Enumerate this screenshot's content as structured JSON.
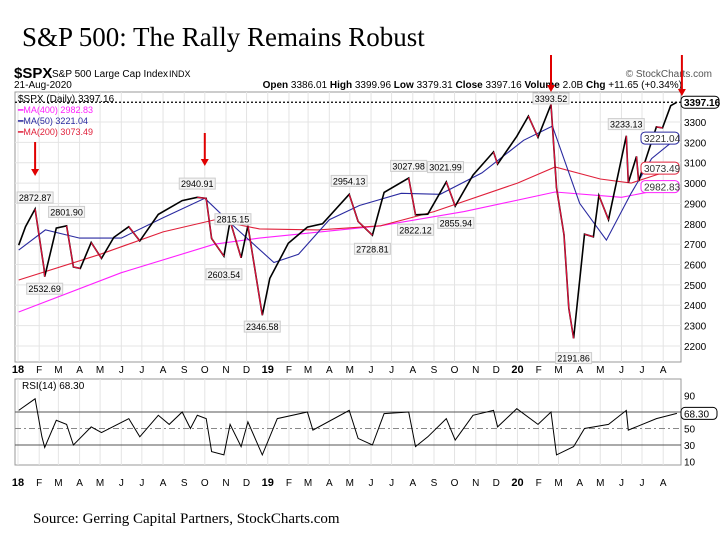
{
  "title": "S&P 500: The Rally Remains Robust",
  "source": "Source: Gerring Capital Partners, StockCharts.com",
  "header": {
    "symbol": "$SPX",
    "name": "S&P 500 Large Cap Index",
    "exchange": "INDX",
    "date": "21-Aug-2020",
    "watermark": "© StockCharts.com",
    "open_label": "Open",
    "open": "3386.01",
    "high_label": "High",
    "high": "3399.96",
    "low_label": "Low",
    "low": "3379.31",
    "close_label": "Close",
    "close": "3397.16",
    "volume_label": "Volume",
    "volume": "2.0B",
    "chg_label": "Chg",
    "chg": "+11.65 (+0.34%)"
  },
  "colors": {
    "price": "#000000",
    "down": "#e0103a",
    "ma50": "#2a2aa0",
    "ma200": "#e0203a",
    "ma400": "#ff20ff",
    "arrow": "#e00000",
    "grid": "#e4e4e4"
  },
  "chart_data": [
    {
      "type": "line",
      "title": "$SPX (Daily) 3397.16",
      "ylim": [
        2130,
        3440
      ],
      "yticks": [
        2200,
        2300,
        2400,
        2500,
        2600,
        2700,
        2800,
        2900,
        3000,
        3100,
        3200,
        3300
      ],
      "xlim": [
        "2018-01-01",
        "2020-08-27"
      ],
      "xtick_labels": [
        "18",
        "F",
        "M",
        "A",
        "M",
        "J",
        "J",
        "A",
        "S",
        "O",
        "N",
        "D",
        "19",
        "F",
        "M",
        "A",
        "M",
        "J",
        "J",
        "A",
        "S",
        "O",
        "N",
        "D",
        "20",
        "F",
        "M",
        "A",
        "M",
        "J",
        "J",
        "A"
      ],
      "last_value_label": "3397.16",
      "grid": true,
      "series": [
        {
          "name": "$SPX (Daily) 3397.16",
          "points": [
            [
              "2018-01-02",
              2695
            ],
            [
              "2018-01-12",
              2786
            ],
            [
              "2018-01-26",
              2872.87
            ],
            [
              "2018-02-08",
              2581
            ],
            [
              "2018-02-09",
              2540
            ],
            [
              "2018-02-26",
              2779
            ],
            [
              "2018-03-13",
              2790
            ],
            [
              "2018-03-23",
              2588
            ],
            [
              "2018-04-02",
              2581
            ],
            [
              "2018-04-18",
              2708
            ],
            [
              "2018-05-03",
              2630
            ],
            [
              "2018-05-21",
              2733
            ],
            [
              "2018-06-12",
              2786
            ],
            [
              "2018-06-28",
              2716
            ],
            [
              "2018-07-25",
              2846
            ],
            [
              "2018-08-29",
              2914
            ],
            [
              "2018-09-20",
              2930
            ],
            [
              "2018-10-03",
              2925
            ],
            [
              "2018-10-11",
              2728
            ],
            [
              "2018-10-29",
              2641
            ],
            [
              "2018-11-07",
              2814
            ],
            [
              "2018-11-23",
              2633
            ],
            [
              "2018-12-03",
              2790
            ],
            [
              "2018-12-24",
              2351
            ],
            [
              "2019-01-04",
              2532
            ],
            [
              "2019-01-31",
              2704
            ],
            [
              "2019-02-28",
              2784
            ],
            [
              "2019-03-22",
              2800
            ],
            [
              "2019-04-30",
              2945
            ],
            [
              "2019-05-13",
              2812
            ],
            [
              "2019-06-03",
              2744
            ],
            [
              "2019-06-20",
              2954
            ],
            [
              "2019-07-26",
              3025
            ],
            [
              "2019-08-05",
              2844
            ],
            [
              "2019-08-23",
              2847
            ],
            [
              "2019-09-19",
              3006
            ],
            [
              "2019-10-02",
              2887
            ],
            [
              "2019-10-28",
              3039
            ],
            [
              "2019-11-27",
              3153
            ],
            [
              "2019-12-03",
              3093
            ],
            [
              "2019-12-31",
              3230
            ],
            [
              "2020-01-17",
              3329
            ],
            [
              "2020-01-31",
              3225
            ],
            [
              "2020-02-19",
              3386
            ],
            [
              "2020-02-27",
              2978
            ],
            [
              "2020-03-09",
              2746
            ],
            [
              "2020-03-16",
              2386
            ],
            [
              "2020-03-23",
              2237
            ],
            [
              "2020-04-08",
              2749
            ],
            [
              "2020-04-21",
              2736
            ],
            [
              "2020-04-29",
              2939
            ],
            [
              "2020-05-13",
              2820
            ],
            [
              "2020-06-08",
              3232
            ],
            [
              "2020-06-11",
              3002
            ],
            [
              "2020-06-23",
              3131
            ],
            [
              "2020-06-26",
              3009
            ],
            [
              "2020-07-22",
              3276
            ],
            [
              "2020-07-31",
              3271
            ],
            [
              "2020-08-12",
              3380
            ],
            [
              "2020-08-21",
              3397.16
            ]
          ]
        },
        {
          "name": "MA(50) 3221.04",
          "last": "3221.04",
          "points": [
            [
              "2018-01-02",
              2671
            ],
            [
              "2018-02-10",
              2770
            ],
            [
              "2018-04-01",
              2730
            ],
            [
              "2018-06-01",
              2730
            ],
            [
              "2018-08-01",
              2830
            ],
            [
              "2018-10-01",
              2925
            ],
            [
              "2018-11-15",
              2780
            ],
            [
              "2019-01-10",
              2610
            ],
            [
              "2019-02-15",
              2650
            ],
            [
              "2019-04-01",
              2820
            ],
            [
              "2019-05-15",
              2890
            ],
            [
              "2019-07-15",
              2950
            ],
            [
              "2019-09-10",
              2945
            ],
            [
              "2019-11-10",
              3050
            ],
            [
              "2020-01-10",
              3210
            ],
            [
              "2020-02-21",
              3280
            ],
            [
              "2020-04-01",
              2900
            ],
            [
              "2020-05-10",
              2720
            ],
            [
              "2020-06-15",
              2950
            ],
            [
              "2020-07-15",
              3120
            ],
            [
              "2020-08-21",
              3221.04
            ]
          ]
        },
        {
          "name": "MA(200) 3073.49",
          "last": "3073.49",
          "points": [
            [
              "2018-01-02",
              2524
            ],
            [
              "2018-05-01",
              2650
            ],
            [
              "2018-08-01",
              2760
            ],
            [
              "2018-10-15",
              2819
            ],
            [
              "2018-12-20",
              2775
            ],
            [
              "2019-03-15",
              2770
            ],
            [
              "2019-06-15",
              2790
            ],
            [
              "2019-09-01",
              2860
            ],
            [
              "2020-01-01",
              3000
            ],
            [
              "2020-02-25",
              3079
            ],
            [
              "2020-05-01",
              3020
            ],
            [
              "2020-06-15",
              3000
            ],
            [
              "2020-08-21",
              3073.49
            ]
          ]
        },
        {
          "name": "MA(400) 2982.83",
          "last": "2982.83",
          "points": [
            [
              "2018-01-02",
              2367
            ],
            [
              "2018-06-01",
              2560
            ],
            [
              "2018-10-15",
              2700
            ],
            [
              "2018-12-20",
              2730
            ],
            [
              "2019-06-15",
              2790
            ],
            [
              "2019-10-15",
              2860
            ],
            [
              "2020-02-25",
              2956
            ],
            [
              "2020-06-01",
              2930
            ],
            [
              "2020-08-21",
              2982.83
            ]
          ]
        }
      ],
      "annotations": [
        [
          "2018-01-26",
          2872.87,
          "2872.87",
          "above"
        ],
        [
          "2018-02-09",
          2532.69,
          "2532.69",
          "below"
        ],
        [
          "2018-03-13",
          2801.9,
          "2801.90",
          "above"
        ],
        [
          "2018-09-20",
          2940.91,
          "2940.91",
          "above"
        ],
        [
          "2018-10-10",
          2815.15,
          "2815.15",
          "right"
        ],
        [
          "2018-10-29",
          2603.54,
          "2603.54",
          "below"
        ],
        [
          "2018-12-24",
          2346.58,
          "2346.58",
          "below"
        ],
        [
          "2019-04-30",
          2954.13,
          "2954.13",
          "above"
        ],
        [
          "2019-06-03",
          2728.81,
          "2728.81",
          "below"
        ],
        [
          "2019-07-26",
          3027.98,
          "3027.98",
          "above"
        ],
        [
          "2019-08-05",
          2822.12,
          "2822.12",
          "below"
        ],
        [
          "2019-09-12",
          3021.99,
          "3021.99",
          "above"
        ],
        [
          "2019-10-03",
          2855.94,
          "2855.94",
          "below"
        ],
        [
          "2020-02-19",
          3393.52,
          "3393.52",
          "above"
        ],
        [
          "2020-03-23",
          2191.86,
          "2191.86",
          "below"
        ],
        [
          "2020-06-08",
          3233.13,
          "3233.13",
          "above"
        ]
      ],
      "arrows": [
        "2018-01-26",
        "2018-10-01",
        "2020-02-19",
        "2020-08-21"
      ]
    },
    {
      "type": "line",
      "title": "RSI(14) 68.30",
      "ylim": [
        0,
        100
      ],
      "yticks": [
        90,
        50,
        30,
        10
      ],
      "reference_lines": [
        70,
        50,
        30
      ],
      "last_value_label": "68.30",
      "points": [
        [
          "2018-01-02",
          72
        ],
        [
          "2018-01-26",
          86
        ],
        [
          "2018-02-05",
          40
        ],
        [
          "2018-02-09",
          27
        ],
        [
          "2018-02-26",
          60
        ],
        [
          "2018-03-13",
          55
        ],
        [
          "2018-03-23",
          30
        ],
        [
          "2018-04-18",
          52
        ],
        [
          "2018-05-03",
          45
        ],
        [
          "2018-06-12",
          62
        ],
        [
          "2018-06-28",
          40
        ],
        [
          "2018-07-25",
          66
        ],
        [
          "2018-08-10",
          55
        ],
        [
          "2018-08-29",
          70
        ],
        [
          "2018-09-10",
          50
        ],
        [
          "2018-09-20",
          66
        ],
        [
          "2018-10-03",
          62
        ],
        [
          "2018-10-11",
          22
        ],
        [
          "2018-10-29",
          18
        ],
        [
          "2018-11-07",
          55
        ],
        [
          "2018-11-23",
          28
        ],
        [
          "2018-12-03",
          58
        ],
        [
          "2018-12-24",
          18
        ],
        [
          "2019-01-15",
          62
        ],
        [
          "2019-02-28",
          70
        ],
        [
          "2019-03-08",
          48
        ],
        [
          "2019-04-30",
          72
        ],
        [
          "2019-05-13",
          38
        ],
        [
          "2019-06-03",
          30
        ],
        [
          "2019-06-20",
          68
        ],
        [
          "2019-07-26",
          70
        ],
        [
          "2019-08-05",
          28
        ],
        [
          "2019-08-23",
          40
        ],
        [
          "2019-09-19",
          62
        ],
        [
          "2019-10-02",
          36
        ],
        [
          "2019-10-28",
          66
        ],
        [
          "2019-11-27",
          72
        ],
        [
          "2019-12-03",
          52
        ],
        [
          "2019-12-31",
          74
        ],
        [
          "2020-01-31",
          55
        ],
        [
          "2020-02-19",
          70
        ],
        [
          "2020-02-27",
          18
        ],
        [
          "2020-03-23",
          28
        ],
        [
          "2020-04-08",
          50
        ],
        [
          "2020-05-13",
          55
        ],
        [
          "2020-06-08",
          72
        ],
        [
          "2020-06-11",
          48
        ],
        [
          "2020-07-22",
          62
        ],
        [
          "2020-08-21",
          68.3
        ]
      ]
    }
  ]
}
